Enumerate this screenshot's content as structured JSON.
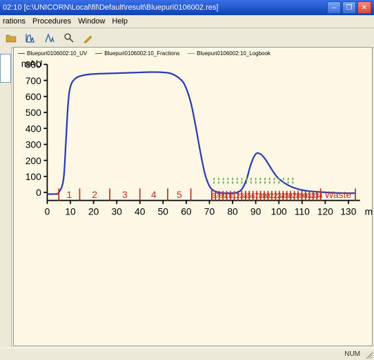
{
  "window": {
    "title": "02:10   [c:\\UNICORN\\Local\\fil\\Default\\result\\Bluepuri0106002.res]"
  },
  "menubar": {
    "items": [
      "rations",
      "Procedures",
      "Window",
      "Help"
    ]
  },
  "toolbar": {
    "buttons": [
      {
        "name": "open-icon",
        "color": "#d4a23c"
      },
      {
        "name": "chromatogram-icon",
        "color": "#2a5fa5"
      },
      {
        "name": "peak-icon",
        "color": "#2a5fa5"
      },
      {
        "name": "zoom-icon",
        "color": "#333333"
      },
      {
        "name": "edit-icon",
        "color": "#c4a000"
      }
    ]
  },
  "legend": {
    "items": [
      {
        "label": "Bluepuri0106002:10_UV",
        "color": "#2a3cb5",
        "dash": "solid"
      },
      {
        "label": "Bluepuri0106002:10_Fractions",
        "color": "#c03020",
        "dash": "solid"
      },
      {
        "label": "Bluepuri0106002:10_Logbook",
        "color": "#6aa84f",
        "dash": "dashed"
      }
    ]
  },
  "chart": {
    "type": "line",
    "background_color": "#fdf8e5",
    "axis_color": "#000000",
    "grid_color": "#000000",
    "uv_line_color": "#2a3cb5",
    "fraction_color": "#c03020",
    "y_axis_unit": "mAU",
    "x_axis_unit": "ml",
    "y": {
      "min": -50,
      "max": 800,
      "ticks": [
        0,
        100,
        200,
        300,
        400,
        500,
        600,
        700,
        800
      ],
      "labels": [
        "0",
        "100",
        "200",
        "300",
        "400",
        "500",
        "600",
        "700",
        "800"
      ]
    },
    "x": {
      "min": 0,
      "max": 135,
      "ticks": [
        0,
        10,
        20,
        30,
        40,
        50,
        60,
        70,
        80,
        90,
        100,
        110,
        120,
        130
      ],
      "labels": [
        "0",
        "10",
        "20",
        "30",
        "40",
        "50",
        "60",
        "70",
        "80",
        "90",
        "100",
        "110",
        "120",
        "130"
      ]
    },
    "uv_curve": [
      [
        0,
        -10
      ],
      [
        3,
        -10
      ],
      [
        5,
        0
      ],
      [
        7,
        80
      ],
      [
        8,
        300
      ],
      [
        9,
        550
      ],
      [
        10,
        660
      ],
      [
        12,
        710
      ],
      [
        15,
        730
      ],
      [
        20,
        740
      ],
      [
        30,
        745
      ],
      [
        40,
        750
      ],
      [
        45,
        752
      ],
      [
        50,
        750
      ],
      [
        54,
        740
      ],
      [
        58,
        700
      ],
      [
        60,
        650
      ],
      [
        62,
        560
      ],
      [
        64,
        420
      ],
      [
        66,
        260
      ],
      [
        68,
        120
      ],
      [
        70,
        40
      ],
      [
        72,
        10
      ],
      [
        74,
        0
      ],
      [
        76,
        -5
      ],
      [
        78,
        -5
      ],
      [
        80,
        -5
      ],
      [
        82,
        0
      ],
      [
        84,
        20
      ],
      [
        86,
        80
      ],
      [
        88,
        180
      ],
      [
        90,
        240
      ],
      [
        92,
        240
      ],
      [
        94,
        210
      ],
      [
        96,
        165
      ],
      [
        98,
        120
      ],
      [
        100,
        85
      ],
      [
        104,
        45
      ],
      [
        108,
        22
      ],
      [
        112,
        10
      ],
      [
        118,
        2
      ],
      [
        125,
        -3
      ],
      [
        133,
        -5
      ]
    ],
    "fraction_lines": {
      "coarse": [
        {
          "from": 5,
          "to": 14,
          "label": "1"
        },
        {
          "from": 14,
          "to": 27,
          "label": "2"
        },
        {
          "from": 27,
          "to": 40,
          "label": "3"
        },
        {
          "from": 40,
          "to": 52,
          "label": "4"
        },
        {
          "from": 52,
          "to": 62,
          "label": "5"
        },
        {
          "from": 62,
          "to": 71,
          "label": ""
        }
      ],
      "fine_start": 71,
      "fine_end": 118,
      "fine_count": 29,
      "fine_first_label": 6,
      "waste_from": 118,
      "waste_to": 133,
      "waste_label": "Waste"
    },
    "logbook_marks": [
      72,
      74,
      76,
      78,
      80,
      82,
      84,
      86,
      88,
      90,
      92,
      94,
      96,
      98,
      100,
      102,
      104,
      106
    ]
  },
  "statusbar": {
    "text": "NUM"
  },
  "fonts": {
    "axis_label_size": 8,
    "legend_size": 8
  }
}
